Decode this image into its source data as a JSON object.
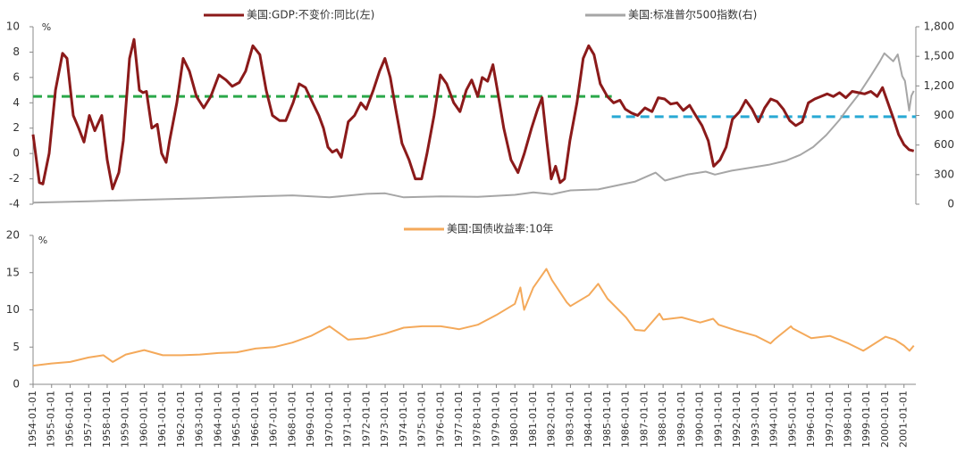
{
  "chart_data": [
    {
      "type": "line",
      "y_unit": "%",
      "xlim": [
        1954,
        2001.64
      ],
      "ylim": [
        -4,
        10
      ],
      "yticks": [
        -4,
        -2,
        0,
        2,
        4,
        6,
        8,
        10
      ],
      "y2lim": [
        0,
        1800
      ],
      "y2ticks": [
        0,
        300,
        600,
        900,
        {
          "value": 1200,
          "label": "1,200"
        },
        {
          "value": 1500,
          "label": "1,500"
        },
        {
          "value": 1800,
          "label": "1,800"
        }
      ],
      "series": [
        {
          "name": "美国:GDP:不变价:同比(左)",
          "color": "#8b1a1a",
          "axis": "y",
          "x": [
            1954,
            1954.34,
            1954.53,
            1954.87,
            1955.21,
            1955.59,
            1955.83,
            1956.17,
            1956.46,
            1956.75,
            1957.04,
            1957.33,
            1957.71,
            1958,
            1958.29,
            1958.63,
            1958.87,
            1959.21,
            1959.45,
            1959.74,
            1959.93,
            1960.12,
            1960.41,
            1960.7,
            1960.94,
            1961.18,
            1961.37,
            1961.76,
            1962.1,
            1962.44,
            1962.82,
            1963.21,
            1963.59,
            1964.03,
            1964.41,
            1964.75,
            1965.13,
            1965.47,
            1965.86,
            1966.24,
            1966.58,
            1966.92,
            1967.3,
            1967.64,
            1968.03,
            1968.36,
            1968.7,
            1969.09,
            1969.42,
            1969.67,
            1969.91,
            1970.15,
            1970.39,
            1970.63,
            1971.01,
            1971.35,
            1971.69,
            1971.98,
            1972.36,
            1972.7,
            1972.99,
            1973.28,
            1973.57,
            1973.91,
            1974.29,
            1974.63,
            1974.97,
            1975.26,
            1975.64,
            1975.98,
            1976.32,
            1976.7,
            1977.04,
            1977.38,
            1977.67,
            1978,
            1978.24,
            1978.53,
            1978.82,
            1979.06,
            1979.4,
            1979.79,
            1980.17,
            1980.51,
            1980.9,
            1981.23,
            1981.47,
            1981.72,
            1981.96,
            1982.2,
            1982.44,
            1982.68,
            1982.97,
            1983.35,
            1983.69,
            1983.98,
            1984.27,
            1984.61,
            1984.99,
            1985.33,
            1985.67,
            1985.96,
            1986.29,
            1986.63,
            1987.02,
            1987.4,
            1987.74,
            1988.08,
            1988.41,
            1988.75,
            1989.09,
            1989.43,
            1989.76,
            1990.1,
            1990.44,
            1990.73,
            1991.07,
            1991.4,
            1991.74,
            1992.13,
            1992.46,
            1992.8,
            1993.14,
            1993.48,
            1993.81,
            1994.15,
            1994.49,
            1994.83,
            1995.16,
            1995.5,
            1995.84,
            1996.18,
            1996.51,
            1996.85,
            1997.19,
            1997.52,
            1997.86,
            1998.2,
            1998.54,
            1998.87,
            1999.21,
            1999.55,
            1999.84,
            2000.13,
            2000.42,
            2000.71,
            2001,
            2001.28,
            2001.53
          ],
          "values": [
            1.5,
            -2.3,
            -2.4,
            0,
            5,
            7.9,
            7.5,
            3,
            2,
            0.9,
            3,
            1.8,
            3,
            -0.5,
            -2.8,
            -1.5,
            1,
            7.5,
            9.0,
            5,
            4.8,
            4.9,
            2,
            2.3,
            0,
            -0.7,
            1,
            4,
            7.5,
            6.5,
            4.5,
            3.6,
            4.5,
            6.2,
            5.8,
            5.3,
            5.6,
            6.5,
            8.5,
            7.8,
            5,
            3,
            2.6,
            2.6,
            4,
            5.5,
            5.2,
            4,
            3,
            2,
            0.5,
            0.1,
            0.3,
            -0.3,
            2.5,
            3,
            4,
            3.5,
            5,
            6.5,
            7.5,
            6,
            3.5,
            0.8,
            -0.5,
            -2,
            -2,
            0,
            3,
            6.2,
            5.5,
            4,
            3.3,
            5,
            5.8,
            4.5,
            6,
            5.7,
            7.0,
            5,
            2,
            -0.5,
            -1.5,
            0,
            2,
            3.5,
            4.4,
            1,
            -2,
            -1,
            -2.3,
            -2,
            1,
            4,
            7.5,
            8.5,
            7.8,
            5.5,
            4.5,
            4,
            4.2,
            3.5,
            3.2,
            3.0,
            3.6,
            3.3,
            4.4,
            4.3,
            3.9,
            4.0,
            3.4,
            3.8,
            3,
            2.2,
            1,
            -1,
            -0.5,
            0.5,
            2.7,
            3.3,
            4.2,
            3.5,
            2.5,
            3.6,
            4.3,
            4.1,
            3.5,
            2.6,
            2.2,
            2.5,
            4,
            4.3,
            4.5,
            4.7,
            4.5,
            4.8,
            4.4,
            4.9,
            4.8,
            4.7,
            4.9,
            4.5,
            5.2,
            4,
            2.8,
            1.5,
            0.7,
            0.3,
            0.2
          ]
        },
        {
          "name": "美国:标准普尔500指数(右)",
          "color": "#a6a6a6",
          "axis": "y2",
          "x": [
            1954,
            1957,
            1960,
            1963,
            1966,
            1968,
            1970,
            1972,
            1973,
            1974,
            1976,
            1978,
            1980,
            1981,
            1982,
            1983,
            1984.5,
            1985.5,
            1986.5,
            1987.6,
            1988.1,
            1989.3,
            1990.3,
            1990.8,
            1991.7,
            1992.7,
            1993.7,
            1994.6,
            1995.4,
            1996.1,
            1996.8,
            1997.5,
            1998,
            1998.5,
            1999.2,
            1999.7,
            1999.94,
            2000.42,
            2000.66,
            2000.9,
            2001.05,
            2001.28,
            2001.4,
            2001.53
          ],
          "values": [
            15,
            30,
            45,
            60,
            80,
            90,
            70,
            105,
            110,
            70,
            80,
            75,
            95,
            120,
            100,
            140,
            150,
            190,
            230,
            320,
            240,
            300,
            330,
            300,
            340,
            370,
            400,
            440,
            500,
            580,
            700,
            850,
            980,
            1100,
            1300,
            1450,
            1530,
            1450,
            1520,
            1300,
            1250,
            950,
            1100,
            1150
          ]
        }
      ],
      "reference_lines": [
        {
          "value": 4.5,
          "x": [
            1954,
            1985.23
          ],
          "color": "#2aa84a"
        },
        {
          "value": 2.9,
          "x": [
            1985.23,
            2001.64
          ],
          "color": "#28a9d4"
        }
      ]
    },
    {
      "type": "line",
      "y_unit": "%",
      "xlim": [
        1954,
        2001.64
      ],
      "ylim": [
        0,
        20
      ],
      "yticks": [
        0,
        5,
        10,
        15,
        20
      ],
      "xticks": [
        {
          "value": 1954,
          "label": "1954-01-01"
        },
        {
          "value": 1955,
          "label": "1955-01-01"
        },
        {
          "value": 1956,
          "label": "1956-01-01"
        },
        {
          "value": 1957,
          "label": "1957-01-01"
        },
        {
          "value": 1958,
          "label": "1958-01-01"
        },
        {
          "value": 1959,
          "label": "1959-01-01"
        },
        {
          "value": 1960,
          "label": "1960-01-01"
        },
        {
          "value": 1961,
          "label": "1961-01-01"
        },
        {
          "value": 1962,
          "label": "1962-01-01"
        },
        {
          "value": 1963,
          "label": "1963-01-01"
        },
        {
          "value": 1964,
          "label": "1964-01-01"
        },
        {
          "value": 1965,
          "label": "1965-01-01"
        },
        {
          "value": 1966,
          "label": "1966-01-01"
        },
        {
          "value": 1967,
          "label": "1967-01-01"
        },
        {
          "value": 1968,
          "label": "1968-01-01"
        },
        {
          "value": 1969,
          "label": "1969-01-01"
        },
        {
          "value": 1970,
          "label": "1970-01-01"
        },
        {
          "value": 1971,
          "label": "1971-01-01"
        },
        {
          "value": 1972,
          "label": "1972-01-01"
        },
        {
          "value": 1973,
          "label": "1973-01-01"
        },
        {
          "value": 1974,
          "label": "1974-01-01"
        },
        {
          "value": 1975,
          "label": "1975-01-01"
        },
        {
          "value": 1976,
          "label": "1976-01-01"
        },
        {
          "value": 1977,
          "label": "1977-01-01"
        },
        {
          "value": 1978,
          "label": "1978-01-01"
        },
        {
          "value": 1979,
          "label": "1979-01-01"
        },
        {
          "value": 1980,
          "label": "1980-01-01"
        },
        {
          "value": 1981,
          "label": "1981-01-01"
        },
        {
          "value": 1982,
          "label": "1982-01-01"
        },
        {
          "value": 1983,
          "label": "1983-01-01"
        },
        {
          "value": 1984,
          "label": "1984-01-01"
        },
        {
          "value": 1985,
          "label": "1985-01-01"
        },
        {
          "value": 1986,
          "label": "1986-01-01"
        },
        {
          "value": 1987,
          "label": "1987-01-01"
        },
        {
          "value": 1988,
          "label": "1988-01-01"
        },
        {
          "value": 1989,
          "label": "1989-01-01"
        },
        {
          "value": 1990,
          "label": "1990-01-01"
        },
        {
          "value": 1991,
          "label": "1991-01-01"
        },
        {
          "value": 1992,
          "label": "1992-01-01"
        },
        {
          "value": 1993,
          "label": "1993-01-01"
        },
        {
          "value": 1994,
          "label": "1994-01-01"
        },
        {
          "value": 1995,
          "label": "1995-01-01"
        },
        {
          "value": 1996,
          "label": "1996-01-01"
        },
        {
          "value": 1997,
          "label": "1997-01-01"
        },
        {
          "value": 1998,
          "label": "1998-01-01"
        },
        {
          "value": 1999,
          "label": "1999-01-01"
        },
        {
          "value": 2000,
          "label": "2000-01-01"
        },
        {
          "value": 2001,
          "label": "2001-01-01"
        }
      ],
      "series": [
        {
          "name": "美国:国债收益率:10年",
          "color": "#f4a95a",
          "axis": "y",
          "x": [
            1954,
            1955,
            1956,
            1957,
            1957.8,
            1958.3,
            1959,
            1960,
            1961,
            1962,
            1963,
            1964,
            1965,
            1966,
            1967,
            1968,
            1969,
            1970,
            1971,
            1972,
            1973,
            1974,
            1975,
            1976,
            1977,
            1978,
            1979,
            1980,
            1980.3,
            1980.5,
            1981,
            1981.7,
            1982,
            1982.8,
            1983,
            1984,
            1984.5,
            1985,
            1986,
            1986.5,
            1987,
            1987.8,
            1988,
            1989,
            1990,
            1990.7,
            1991,
            1992,
            1993,
            1993.8,
            1994,
            1994.9,
            1995,
            1996,
            1997,
            1998,
            1998.8,
            1999,
            2000,
            2000.5,
            2001,
            2001.3,
            2001.53
          ],
          "values": [
            2.5,
            2.8,
            3.0,
            3.6,
            3.9,
            3.0,
            4.0,
            4.6,
            3.9,
            3.9,
            4.0,
            4.2,
            4.3,
            4.8,
            5.0,
            5.6,
            6.5,
            7.8,
            6.0,
            6.2,
            6.8,
            7.6,
            7.8,
            7.8,
            7.4,
            8.0,
            9.3,
            10.8,
            13,
            10,
            13,
            15.5,
            14,
            11,
            10.5,
            12,
            13.5,
            11.5,
            9,
            7.3,
            7.2,
            9.5,
            8.7,
            9.0,
            8.3,
            8.8,
            8.0,
            7.2,
            6.5,
            5.5,
            6,
            7.8,
            7.5,
            6.2,
            6.5,
            5.5,
            4.5,
            4.8,
            6.4,
            6.0,
            5.2,
            4.5,
            5.2
          ]
        }
      ]
    }
  ]
}
